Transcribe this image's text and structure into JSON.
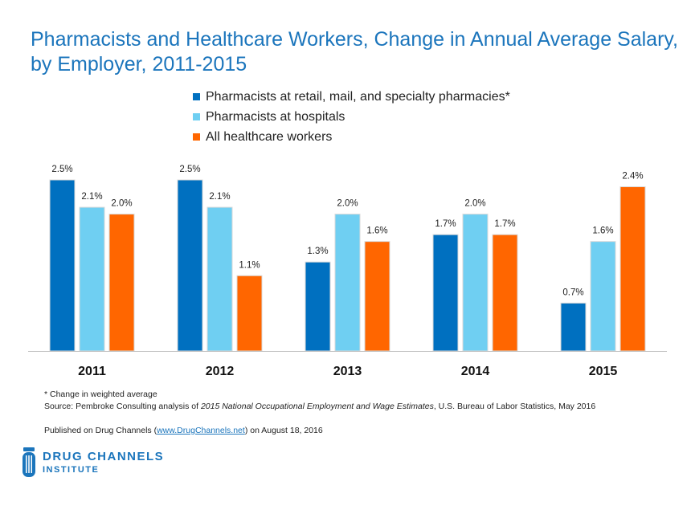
{
  "title": "Pharmacists and Healthcare Workers, Change in Annual Average Salary, by Employer, 2011-2015",
  "colors": {
    "retail": "#0070c0",
    "hospital": "#6fcff2",
    "healthcare": "#ff6600",
    "title": "#1b75bc"
  },
  "chart_data": {
    "type": "bar",
    "title": "Pharmacists and Healthcare Workers, Change in Annual Average Salary, by Employer, 2011-2015",
    "xlabel": "",
    "ylabel": "",
    "ylim": [
      0,
      2.7
    ],
    "grid": false,
    "legend": "top",
    "categories": [
      "2011",
      "2012",
      "2013",
      "2014",
      "2015"
    ],
    "series": [
      {
        "name": "Pharmacists at retail, mail, and specialty pharmacies*",
        "color": "#0070c0",
        "values": [
          2.5,
          2.5,
          1.3,
          1.7,
          0.7
        ],
        "labels": [
          "2.5%",
          "2.5%",
          "1.3%",
          "1.7%",
          "0.7%"
        ]
      },
      {
        "name": "Pharmacists at hospitals",
        "color": "#6fcff2",
        "values": [
          2.1,
          2.1,
          2.0,
          2.0,
          1.6
        ],
        "labels": [
          "2.1%",
          "2.1%",
          "2.0%",
          "2.0%",
          "1.6%"
        ]
      },
      {
        "name": "All healthcare workers",
        "color": "#ff6600",
        "values": [
          2.0,
          1.1,
          1.6,
          1.7,
          2.4
        ],
        "labels": [
          "2.0%",
          "1.1%",
          "1.6%",
          "1.7%",
          "2.4%"
        ]
      }
    ]
  },
  "footnotes": {
    "asterisk": "* Change in weighted average",
    "source_prefix": "Source: Pembroke Consulting analysis of ",
    "source_title": "2015 National Occupational Employment and Wage Estimates",
    "source_suffix": ", U.S. Bureau of Labor Statistics, May 2016",
    "published_prefix": "Published on Drug Channels (",
    "published_link": "www.DrugChannels.net",
    "published_suffix": ") on August 18, 2016"
  },
  "logo": {
    "line1": "DRUG CHANNELS",
    "line2": "INSTITUTE",
    "icon": "pill-bottle-icon"
  }
}
